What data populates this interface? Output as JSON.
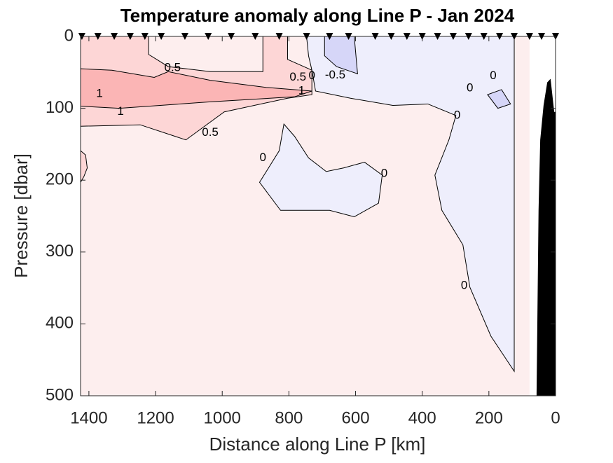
{
  "chart_data": {
    "type": "contour",
    "title": "Temperature anomaly along Line P - Jan 2024",
    "xlabel": "Distance along Line P [km]",
    "ylabel": "Pressure [dbar]",
    "xlim": [
      1425,
      0
    ],
    "xticks": [
      1400,
      1200,
      1000,
      800,
      600,
      400,
      200,
      0
    ],
    "ylim": [
      0,
      500
    ],
    "yticks": [
      0,
      100,
      200,
      300,
      400,
      500
    ],
    "y_inverted": true,
    "background": "#fdeeee",
    "stations": [
      1421,
      1373,
      1324,
      1276,
      1232,
      1183,
      1112,
      1042,
      973,
      901,
      829,
      747,
      678,
      621,
      541,
      493,
      446,
      400,
      354,
      307,
      261,
      215,
      168,
      124,
      78,
      42,
      0
    ],
    "regions": [
      {
        "color": "#fdd6d6",
        "x": [
          1425,
          1221,
          1221,
          1162,
          1036,
          878,
          878,
          804,
          804,
          731,
          731,
          804,
          994,
          1109,
          1246,
          1425
        ],
        "y": [
          0,
          0,
          25,
          42,
          49,
          49,
          0,
          0,
          32,
          47,
          81,
          86,
          105,
          144,
          123,
          125
        ]
      },
      {
        "color": "#fdd6d6",
        "x": [
          1425,
          1410,
          1405,
          1415,
          1425
        ],
        "y": [
          159,
          165,
          183,
          195,
          203
        ]
      },
      {
        "color": "#fbb5b5",
        "x": [
          1425,
          1331,
          1204,
          1162,
          1036,
          867,
          731,
          783,
          1036,
          1309,
          1425
        ],
        "y": [
          45,
          47,
          57,
          49,
          61,
          71,
          76,
          84,
          91,
          100,
          97
        ]
      },
      {
        "color": "#eeeefc",
        "x": [
          747,
          124,
          124,
          194,
          257,
          278,
          341,
          362,
          320,
          299,
          383,
          488,
          615,
          720,
          731,
          741
        ],
        "y": [
          0,
          0,
          466,
          417,
          349,
          290,
          242,
          193,
          144,
          110,
          94,
          96,
          86,
          76,
          47,
          27
        ]
      },
      {
        "color": "#eeeefc",
        "x": [
          815,
          829,
          888,
          825,
          678,
          604,
          531,
          520,
          573,
          636,
          688,
          741,
          783
        ],
        "y": [
          122,
          159,
          203,
          242,
          242,
          251,
          232,
          193,
          175,
          183,
          188,
          169,
          139
        ]
      },
      {
        "color": "#d6d6f8",
        "x": [
          693,
          604,
          594,
          657,
          693
        ],
        "y": [
          0,
          0,
          52,
          42,
          27
        ]
      },
      {
        "color": "#d6d6f8",
        "x": [
          204,
          162,
          135,
          173
        ],
        "y": [
          81,
          74,
          94,
          100
        ]
      }
    ],
    "contour_labels": [
      {
        "level": 0.5,
        "x": 1149,
        "y": 44
      },
      {
        "level": 1,
        "x": 1368,
        "y": 80
      },
      {
        "level": 1,
        "x": 1305,
        "y": 105
      },
      {
        "level": 0.5,
        "x": 1036,
        "y": 134
      },
      {
        "level": 0.5,
        "x": 773,
        "y": 57
      },
      {
        "level": 0,
        "x": 731,
        "y": 55
      },
      {
        "level": -0.5,
        "x": 661,
        "y": 54
      },
      {
        "level": 1,
        "x": 762,
        "y": 76
      },
      {
        "level": 0,
        "x": 187,
        "y": 55
      },
      {
        "level": 0,
        "x": 257,
        "y": 72
      },
      {
        "level": 0,
        "x": 295,
        "y": 110
      },
      {
        "level": 0,
        "x": 878,
        "y": 169
      },
      {
        "level": 0,
        "x": 514,
        "y": 191
      },
      {
        "level": 0,
        "x": 274,
        "y": 347
      }
    ],
    "bathymetry": {
      "color": "#000000",
      "x": [
        57,
        51,
        46,
        36,
        25,
        15,
        4,
        0,
        0
      ],
      "y": [
        500,
        242,
        144,
        96,
        64,
        59,
        105,
        105,
        500
      ]
    }
  }
}
